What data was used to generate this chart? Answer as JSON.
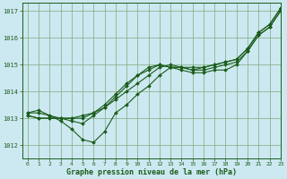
{
  "title": "Graphe pression niveau de la mer (hPa)",
  "bg_color": "#cce8f0",
  "grid_color": "#7dab7d",
  "line_color": "#1a5c1a",
  "marker_color": "#1a5c1a",
  "xlim": [
    -0.5,
    23
  ],
  "ylim": [
    1011.5,
    1017.3
  ],
  "yticks": [
    1012,
    1013,
    1014,
    1015,
    1016,
    1017
  ],
  "xticks": [
    0,
    1,
    2,
    3,
    4,
    5,
    6,
    7,
    8,
    9,
    10,
    11,
    12,
    13,
    14,
    15,
    16,
    17,
    18,
    19,
    20,
    21,
    22,
    23
  ],
  "series": [
    [
      1013.2,
      1013.3,
      1013.1,
      1012.9,
      1012.6,
      1012.2,
      1012.1,
      1012.5,
      1013.2,
      1013.5,
      1013.9,
      1014.2,
      1014.6,
      1014.9,
      1014.8,
      1014.7,
      1014.7,
      1014.8,
      1014.8,
      1015.0,
      1015.5,
      1016.1,
      1016.4,
      1017.0
    ],
    [
      1013.2,
      1013.2,
      1013.1,
      1013.0,
      1012.9,
      1012.8,
      1013.1,
      1013.4,
      1013.8,
      1014.2,
      1014.6,
      1014.9,
      1015.0,
      1014.9,
      1014.9,
      1014.8,
      1014.8,
      1014.9,
      1015.0,
      1015.1,
      1015.5,
      1016.1,
      1016.4,
      1017.0
    ],
    [
      1013.1,
      1013.0,
      1013.0,
      1013.0,
      1013.0,
      1013.1,
      1013.2,
      1013.4,
      1013.7,
      1014.0,
      1014.3,
      1014.6,
      1014.9,
      1015.0,
      1014.9,
      1014.9,
      1014.9,
      1015.0,
      1015.1,
      1015.2,
      1015.6,
      1016.2,
      1016.5,
      1017.1
    ],
    [
      1013.1,
      1013.0,
      1013.0,
      1013.0,
      1013.0,
      1013.0,
      1013.2,
      1013.5,
      1013.9,
      1014.3,
      1014.6,
      1014.8,
      1015.0,
      1014.9,
      1014.9,
      1014.8,
      1014.9,
      1015.0,
      1015.1,
      1015.2,
      1015.6,
      1016.2,
      1016.5,
      1017.1
    ]
  ],
  "figwidth": 3.2,
  "figheight": 2.0,
  "dpi": 100
}
